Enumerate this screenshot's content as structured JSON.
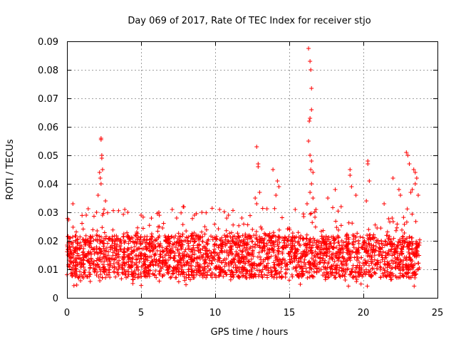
{
  "chart_data": {
    "type": "scatter",
    "title": "Day 069 of 2017, Rate Of TEC Index for receiver stjo",
    "xlabel": "GPS time / hours",
    "ylabel": "ROTI / TECUs",
    "xlim": [
      0,
      25
    ],
    "ylim": [
      0,
      0.09
    ],
    "x_ticks": [
      0,
      5,
      10,
      15,
      20,
      25
    ],
    "x_tick_labels": [
      "0",
      "5",
      "10",
      "15",
      "20",
      "25"
    ],
    "y_ticks": [
      0,
      0.01,
      0.02,
      0.03,
      0.04,
      0.05,
      0.06,
      0.07,
      0.08,
      0.09
    ],
    "y_tick_labels": [
      "0",
      "0.01",
      "0.02",
      "0.03",
      "0.04",
      "0.05",
      "0.06",
      "0.07",
      "0.08",
      "0.09"
    ],
    "grid": true,
    "marker": "+",
    "color": "#ff0000",
    "band": {
      "x_range": [
        0,
        23.8
      ],
      "typical_low": 0.007,
      "typical_high": 0.022,
      "max_outlier": 0.032
    },
    "series": [
      {
        "name": "ROTI",
        "x": [
          2.3,
          2.3,
          2.35,
          2.35,
          2.4,
          2.2,
          2.25,
          2.3,
          2.1,
          2.6,
          2.5,
          2.4,
          2.0,
          1.3,
          0.4,
          3.9,
          4.1,
          5.0,
          6.2,
          7.1,
          7.4,
          8.6,
          9.1,
          10.3,
          10.9,
          11.8,
          12.8,
          12.9,
          12.9,
          13.0,
          12.7,
          12.8,
          13.9,
          14.2,
          14.3,
          14.1,
          16.3,
          16.4,
          16.45,
          16.5,
          16.5,
          16.4,
          16.35,
          16.3,
          16.4,
          16.5,
          16.45,
          16.6,
          16.5,
          16.4,
          16.6,
          16.2,
          15.4,
          16.8,
          17.6,
          18.1,
          18.5,
          19.1,
          19.1,
          19.2,
          19.5,
          20.3,
          20.3,
          20.4,
          20.2,
          21.4,
          22.0,
          22.4,
          22.5,
          22.9,
          23.0,
          23.1,
          23.4,
          23.5,
          23.6,
          23.5,
          23.3,
          23.2,
          23.7
        ],
        "y": [
          0.056,
          0.0555,
          0.05,
          0.049,
          0.045,
          0.044,
          0.042,
          0.04,
          0.036,
          0.034,
          0.031,
          0.029,
          0.03,
          0.029,
          0.033,
          0.031,
          0.03,
          0.029,
          0.03,
          0.031,
          0.028,
          0.029,
          0.03,
          0.031,
          0.029,
          0.028,
          0.053,
          0.047,
          0.046,
          0.037,
          0.035,
          0.033,
          0.045,
          0.041,
          0.039,
          0.036,
          0.0875,
          0.083,
          0.08,
          0.0735,
          0.066,
          0.063,
          0.062,
          0.055,
          0.05,
          0.048,
          0.045,
          0.044,
          0.04,
          0.037,
          0.035,
          0.033,
          0.031,
          0.031,
          0.035,
          0.038,
          0.032,
          0.045,
          0.043,
          0.039,
          0.036,
          0.048,
          0.047,
          0.041,
          0.034,
          0.033,
          0.042,
          0.038,
          0.036,
          0.051,
          0.05,
          0.047,
          0.045,
          0.044,
          0.042,
          0.04,
          0.038,
          0.037,
          0.036
        ]
      }
    ]
  }
}
